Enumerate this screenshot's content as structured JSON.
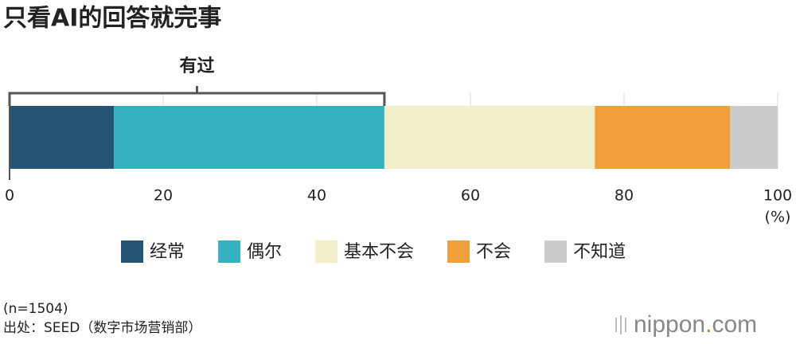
{
  "chart_data": {
    "type": "stacked-bar",
    "orientation": "horizontal",
    "title": "只看AI的回答就完事",
    "categories": [
      null
    ],
    "series": [
      {
        "name": "经常",
        "color": "#245574",
        "values": [
          13.6
        ]
      },
      {
        "name": "偶尔",
        "color": "#35b1bf",
        "values": [
          35.2
        ]
      },
      {
        "name": "基本不会",
        "color": "#f2efc8",
        "values": [
          27.4
        ]
      },
      {
        "name": "不会",
        "color": "#f09f3a",
        "values": [
          17.6
        ]
      },
      {
        "name": "不知道",
        "color": "#cbcbcb",
        "values": [
          6.2
        ]
      }
    ],
    "xlim": [
      0,
      100
    ],
    "xticks": [
      0,
      20,
      40,
      60,
      80,
      100
    ],
    "grid": true,
    "x_unit": "(%)",
    "annotation": {
      "text": "有过",
      "from": 0,
      "to": 48.8
    },
    "notes": [
      "(n=1504)",
      "出处：SEED（数字市场营销部）"
    ],
    "logo": [
      "nippon",
      ".",
      "com"
    ]
  }
}
